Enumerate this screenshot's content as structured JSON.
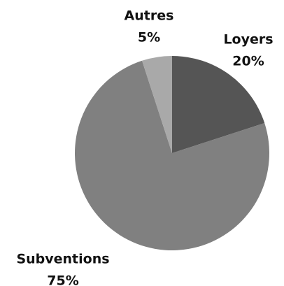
{
  "chart_data": {
    "type": "pie",
    "categories": [
      "Loyers",
      "Subventions",
      "Autres"
    ],
    "values": [
      20,
      75,
      5
    ],
    "value_labels": [
      "20%",
      "75%",
      "5%"
    ],
    "colors": [
      "#555555",
      "#808080",
      "#a9a9a9"
    ]
  }
}
